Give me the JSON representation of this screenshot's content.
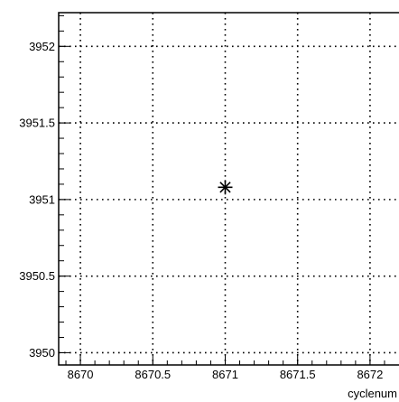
{
  "chart_data": {
    "type": "scatter",
    "xlabel": "cyclenum",
    "ylabel": "",
    "xlim": [
      8669.85,
      8672.2
    ],
    "ylim": [
      3949.92,
      3952.22
    ],
    "x_ticks": [
      8670,
      8670.5,
      8671,
      8671.5,
      8672
    ],
    "x_tick_labels": [
      "8670",
      "8670.5",
      "8671",
      "8671.5",
      "8672"
    ],
    "y_ticks": [
      3950,
      3950.5,
      3951,
      3951.5,
      3952
    ],
    "y_tick_labels": [
      "3950",
      "3950.5",
      "3951",
      "3951.5",
      "3952"
    ],
    "grid": true,
    "marker": "asterisk",
    "points": [
      {
        "x": 8671,
        "y": 3951.08
      }
    ]
  }
}
